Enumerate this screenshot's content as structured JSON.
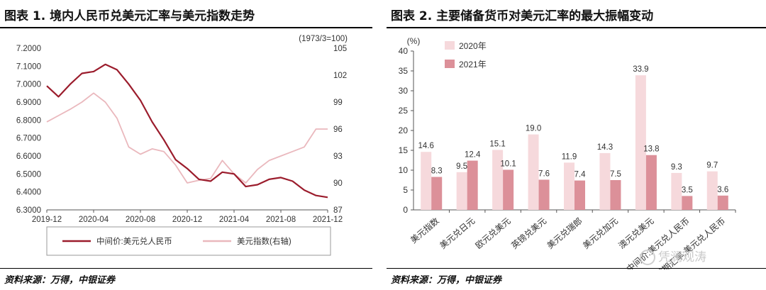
{
  "left": {
    "title": "图表 1. 境内人民币兑美元汇率与美元指数走势",
    "source": "资料来源：万得，中银证券",
    "chart_data": {
      "type": "line",
      "right_axis_note": "(1973/3=100)",
      "x_ticks": [
        "2019-12",
        "2020-04",
        "2020-08",
        "2020-12",
        "2021-04",
        "2021-08",
        "2021-12"
      ],
      "x_range": [
        "2019-12",
        "2021-12"
      ],
      "y_left": {
        "ylim": [
          6.3,
          7.2
        ],
        "ticks": [
          "7.2000",
          "7.1000",
          "7.0000",
          "6.9000",
          "6.8000",
          "6.7000",
          "6.6000",
          "6.5000",
          "6.4000",
          "6.3000"
        ]
      },
      "y_right": {
        "ylim": [
          87,
          105
        ],
        "ticks": [
          "105",
          "102",
          "99",
          "96",
          "93",
          "90",
          "87"
        ]
      },
      "series": [
        {
          "name": "中间价:美元兑人民币",
          "axis": "left",
          "color": "#9b1c2c",
          "points": [
            [
              "2019-12",
              6.99
            ],
            [
              "2020-01",
              6.93
            ],
            [
              "2020-02",
              7.0
            ],
            [
              "2020-03",
              7.06
            ],
            [
              "2020-04",
              7.07
            ],
            [
              "2020-05",
              7.11
            ],
            [
              "2020-06",
              7.08
            ],
            [
              "2020-07",
              7.0
            ],
            [
              "2020-08",
              6.91
            ],
            [
              "2020-09",
              6.79
            ],
            [
              "2020-10",
              6.69
            ],
            [
              "2020-11",
              6.58
            ],
            [
              "2020-12",
              6.53
            ],
            [
              "2021-01",
              6.47
            ],
            [
              "2021-02",
              6.46
            ],
            [
              "2021-03",
              6.51
            ],
            [
              "2021-04",
              6.5
            ],
            [
              "2021-05",
              6.43
            ],
            [
              "2021-06",
              6.44
            ],
            [
              "2021-07",
              6.47
            ],
            [
              "2021-08",
              6.48
            ],
            [
              "2021-09",
              6.46
            ],
            [
              "2021-10",
              6.41
            ],
            [
              "2021-11",
              6.38
            ],
            [
              "2021-12",
              6.37
            ]
          ]
        },
        {
          "name": "美元指数(右轴)",
          "axis": "right",
          "color": "#eab8bd",
          "points": [
            [
              "2019-12",
              96.8
            ],
            [
              "2020-01",
              97.5
            ],
            [
              "2020-02",
              98.2
            ],
            [
              "2020-03",
              99.0
            ],
            [
              "2020-04",
              100.0
            ],
            [
              "2020-05",
              99.0
            ],
            [
              "2020-06",
              97.2
            ],
            [
              "2020-07",
              94.0
            ],
            [
              "2020-08",
              93.2
            ],
            [
              "2020-09",
              93.8
            ],
            [
              "2020-10",
              93.5
            ],
            [
              "2020-11",
              92.0
            ],
            [
              "2020-12",
              90.0
            ],
            [
              "2021-01",
              90.3
            ],
            [
              "2021-02",
              90.5
            ],
            [
              "2021-03",
              92.5
            ],
            [
              "2021-04",
              91.0
            ],
            [
              "2021-05",
              90.0
            ],
            [
              "2021-06",
              91.5
            ],
            [
              "2021-07",
              92.5
            ],
            [
              "2021-08",
              93.0
            ],
            [
              "2021-09",
              93.5
            ],
            [
              "2021-10",
              94.0
            ],
            [
              "2021-11",
              96.0
            ],
            [
              "2021-12",
              96.0
            ]
          ]
        }
      ],
      "legend_position": "bottom"
    }
  },
  "right": {
    "title": "图表 2. 主要储备货币对美元汇率的最大振幅变动",
    "source": "资料来源：万得，中银证券",
    "watermark": "凭澜观涛",
    "chart_data": {
      "type": "bar",
      "ylabel": "(%)",
      "ylim": [
        0,
        40
      ],
      "y_ticks": [
        "40",
        "35",
        "30",
        "25",
        "20",
        "15",
        "10",
        "5",
        "0"
      ],
      "categories": [
        "美元指数",
        "美元兑日元",
        "欧元兑美元",
        "英镑兑美元",
        "美元兑瑞郎",
        "美元兑加元",
        "澳元兑美元",
        "中间价:美元兑人民币",
        "即期汇率:美元兑人民币"
      ],
      "series": [
        {
          "name": "2020年",
          "color": "#f6d9dc",
          "values": [
            14.6,
            9.5,
            15.1,
            19.0,
            11.9,
            14.3,
            33.9,
            9.3,
            9.7
          ]
        },
        {
          "name": "2021年",
          "color": "#dc9099",
          "values": [
            8.3,
            12.4,
            10.1,
            7.6,
            7.4,
            7.5,
            13.8,
            3.5,
            3.6
          ]
        }
      ],
      "legend_position": "top-left"
    }
  }
}
